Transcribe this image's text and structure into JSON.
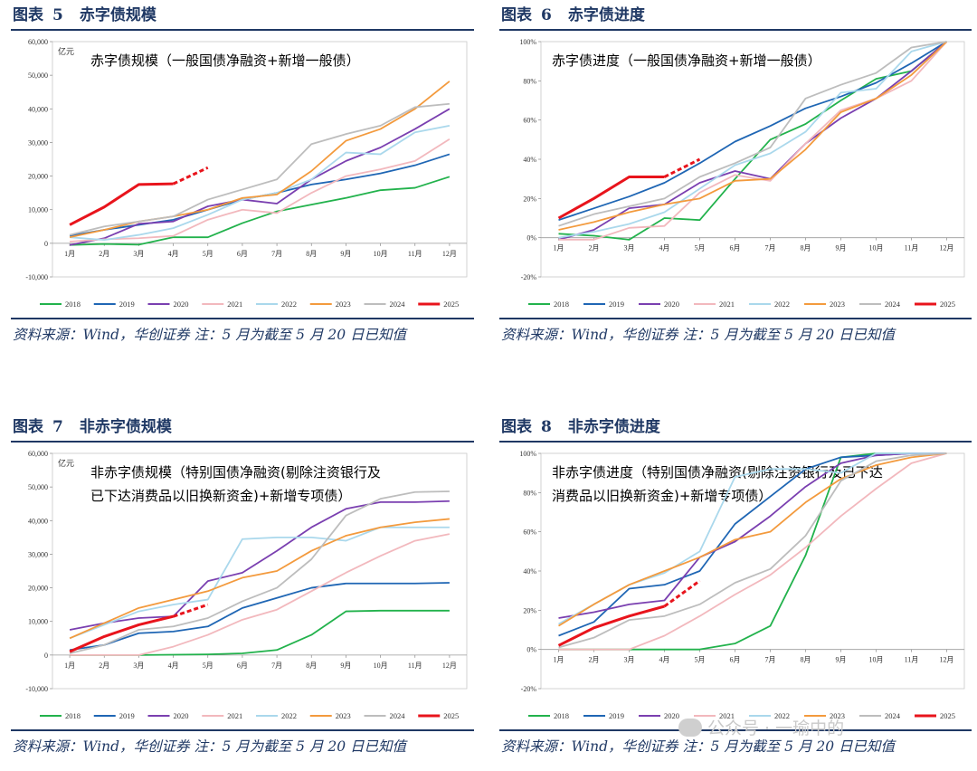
{
  "figures": [
    {
      "id": "p5",
      "label": "图表",
      "number": "5",
      "title": "赤字债规模",
      "source": "资料来源：Wind，华创证券  注：5 月为截至 5 月 20 日已知值"
    },
    {
      "id": "p6",
      "label": "图表",
      "number": "6",
      "title": "赤字债进度",
      "source": "资料来源：Wind，华创证券  注：5 月为截至 5 月 20 日已知值"
    },
    {
      "id": "p7",
      "label": "图表",
      "number": "7",
      "title": "非赤字债规模",
      "source": "资料来源：Wind，华创证券 注：5 月为截至 5 月 20 日已知值"
    },
    {
      "id": "p8",
      "label": "图表",
      "number": "8",
      "title": "非赤字债进度",
      "source": "资料来源：Wind，华创证券 注：5 月为截至 5 月 20 日已知值"
    }
  ],
  "watermark": "公众号 · 一瑜中的",
  "colors": {
    "2018": "#22b24c",
    "2019": "#1f66b4",
    "2020": "#7a3fb0",
    "2021": "#f2b8bd",
    "2022": "#aad8ec",
    "2023": "#f39a3d",
    "2024": "#bdbdbd",
    "2025": "#e8141c",
    "navy": "#1f3864"
  },
  "chart_data": [
    {
      "type": "line",
      "panel": "p5",
      "title": "赤字债规模（一般国债净融资+新增一般债）",
      "ylabel": "亿元",
      "ylim": [
        -10000,
        60000
      ],
      "yticks": [
        "-10,000",
        "0",
        "10,000",
        "20,000",
        "30,000",
        "40,000",
        "50,000",
        "60,000"
      ],
      "categories": [
        "1月",
        "2月",
        "3月",
        "4月",
        "5月",
        "6月",
        "7月",
        "8月",
        "9月",
        "10月",
        "11月",
        "12月"
      ],
      "series": [
        {
          "name": "2018",
          "values": [
            -500,
            -200,
            -400,
            1800,
            1800,
            6000,
            9500,
            11500,
            13500,
            15800,
            16500,
            19800
          ]
        },
        {
          "name": "2019",
          "values": [
            2200,
            4000,
            5500,
            7000,
            10000,
            13000,
            15000,
            17500,
            19000,
            20800,
            23200,
            26500
          ]
        },
        {
          "name": "2020",
          "values": [
            -500,
            1500,
            5800,
            6500,
            11000,
            13000,
            11800,
            19000,
            24500,
            28500,
            34000,
            40000
          ]
        },
        {
          "name": "2021",
          "values": [
            500,
            1200,
            1500,
            2200,
            7000,
            10000,
            9000,
            15000,
            20000,
            22000,
            24500,
            31000
          ]
        },
        {
          "name": "2022",
          "values": [
            1800,
            1000,
            2500,
            4500,
            8500,
            13000,
            15000,
            19000,
            27000,
            26500,
            33000,
            35000
          ]
        },
        {
          "name": "2023",
          "values": [
            1800,
            4000,
            6500,
            8000,
            10000,
            13500,
            14500,
            21500,
            30500,
            34000,
            40000,
            48200
          ]
        },
        {
          "name": "2024",
          "values": [
            2500,
            5000,
            6500,
            8000,
            13000,
            16000,
            19000,
            29500,
            32500,
            35000,
            40500,
            41500
          ]
        },
        {
          "name": "2025",
          "values": [
            5500,
            10800,
            17500,
            17700,
            null,
            null,
            null,
            null,
            null,
            null,
            null,
            null
          ],
          "dashed_to": {
            "index": 4,
            "value": 22500
          }
        }
      ]
    },
    {
      "type": "line",
      "panel": "p6",
      "title": "赤字债进度（一般国债净融资+新增一般债）",
      "ylabel": "",
      "ylim": [
        -20,
        100
      ],
      "yticks": [
        "-20%",
        "0%",
        "20%",
        "40%",
        "60%",
        "80%",
        "100%"
      ],
      "categories": [
        "1月",
        "2月",
        "3月",
        "4月",
        "5月",
        "6月",
        "7月",
        "8月",
        "9月",
        "10月",
        "11月",
        "12月"
      ],
      "series": [
        {
          "name": "2018",
          "values": [
            2,
            1,
            -1,
            10,
            9,
            30,
            50,
            58,
            70,
            81,
            85,
            100
          ]
        },
        {
          "name": "2019",
          "values": [
            9,
            15,
            21,
            28,
            38,
            49,
            57,
            66,
            72,
            79,
            89,
            100
          ]
        },
        {
          "name": "2020",
          "values": [
            -1,
            4,
            15,
            17,
            28,
            34,
            30,
            48,
            61,
            71,
            85,
            100
          ]
        },
        {
          "name": "2021",
          "values": [
            -1,
            -1,
            5,
            6,
            23,
            32,
            29,
            48,
            65,
            71,
            80,
            100
          ]
        },
        {
          "name": "2022",
          "values": [
            0,
            3,
            7,
            13,
            25,
            37,
            43,
            54,
            74,
            76,
            95,
            100
          ]
        },
        {
          "name": "2023",
          "values": [
            4,
            8,
            13,
            17,
            20,
            29,
            30,
            45,
            64,
            71,
            83,
            100
          ]
        },
        {
          "name": "2024",
          "values": [
            6,
            12,
            16,
            20,
            31,
            38,
            46,
            71,
            78,
            84,
            97,
            100
          ]
        },
        {
          "name": "2025",
          "values": [
            10,
            20,
            31,
            31,
            null,
            null,
            null,
            null,
            null,
            null,
            null,
            null
          ],
          "dashed_to": {
            "index": 4,
            "value": 40
          }
        }
      ]
    },
    {
      "type": "line",
      "panel": "p7",
      "title": "非赤字债规模（特别国债净融资(剔除注资银行及已下达消费品以旧换新资金)+新增专项债）",
      "title_lines": [
        "非赤字债规模（特别国债净融资(剔除注资银行及",
        "已下达消费品以旧换新资金)+新增专项债）"
      ],
      "ylabel": "亿元",
      "ylim": [
        -10000,
        60000
      ],
      "yticks": [
        "-10,000",
        "0",
        "10,000",
        "20,000",
        "30,000",
        "40,000",
        "50,000",
        "60,000"
      ],
      "categories": [
        "1月",
        "2月",
        "3月",
        "4月",
        "5月",
        "6月",
        "7月",
        "8月",
        "9月",
        "10月",
        "11月",
        "12月"
      ],
      "series": [
        {
          "name": "2018",
          "values": [
            0,
            0,
            0,
            100,
            200,
            500,
            1500,
            6000,
            13000,
            13200,
            13200,
            13200
          ]
        },
        {
          "name": "2019",
          "values": [
            1500,
            3000,
            6500,
            7000,
            8500,
            14000,
            17000,
            20000,
            21300,
            21300,
            21300,
            21500
          ]
        },
        {
          "name": "2020",
          "values": [
            7500,
            9500,
            11000,
            11500,
            22000,
            24500,
            31000,
            38000,
            43500,
            45500,
            45500,
            45800
          ]
        },
        {
          "name": "2021",
          "values": [
            0,
            0,
            0,
            2500,
            6000,
            10500,
            13500,
            19000,
            24500,
            29500,
            34000,
            36000
          ]
        },
        {
          "name": "2022",
          "values": [
            5000,
            9000,
            13000,
            15000,
            16500,
            34500,
            35000,
            35000,
            34000,
            38000,
            38000,
            38000
          ]
        },
        {
          "name": "2023",
          "values": [
            5000,
            9500,
            14000,
            16500,
            19000,
            23000,
            25000,
            31000,
            35500,
            38000,
            39500,
            40500
          ]
        },
        {
          "name": "2024",
          "values": [
            500,
            3000,
            7500,
            8500,
            11000,
            16000,
            20000,
            28500,
            41500,
            46500,
            48500,
            48700
          ]
        },
        {
          "name": "2025",
          "values": [
            1000,
            5500,
            9000,
            11500,
            null,
            null,
            null,
            null,
            null,
            null,
            null,
            null
          ],
          "dashed_to": {
            "index": 4,
            "value": 15000
          }
        }
      ]
    },
    {
      "type": "line",
      "panel": "p8",
      "title": "非赤字债进度（特别国债净融资(剔除注资银行及已下达消费品以旧换新资金)+新增专项债）",
      "title_lines": [
        "非赤字债进度（特别国债净融资(剔除注资银行及已下达",
        "消费品以旧换新资金)+新增专项债）"
      ],
      "ylabel": "",
      "ylim": [
        -20,
        100
      ],
      "yticks": [
        "-20%",
        "0%",
        "20%",
        "40%",
        "60%",
        "80%",
        "100%"
      ],
      "categories": [
        "1月",
        "2月",
        "3月",
        "4月",
        "5月",
        "6月",
        "7月",
        "8月",
        "9月",
        "10月",
        "11月",
        "12月"
      ],
      "series": [
        {
          "name": "2018",
          "values": [
            0,
            0,
            0,
            0,
            0,
            3,
            12,
            48,
            98,
            100,
            100,
            100
          ]
        },
        {
          "name": "2019",
          "values": [
            7,
            14,
            31,
            33,
            40,
            64,
            78,
            92,
            98,
            99,
            100,
            100
          ]
        },
        {
          "name": "2020",
          "values": [
            16,
            19,
            23,
            25,
            47,
            55,
            68,
            83,
            95,
            99,
            100,
            100
          ]
        },
        {
          "name": "2021",
          "values": [
            0,
            0,
            0,
            7,
            17,
            28,
            38,
            52,
            68,
            82,
            95,
            100
          ]
        },
        {
          "name": "2022",
          "values": [
            13,
            23,
            33,
            39,
            50,
            88,
            92,
            92,
            90,
            100,
            100,
            100
          ]
        },
        {
          "name": "2023",
          "values": [
            12,
            23,
            33,
            40,
            47,
            56,
            60,
            75,
            87,
            94,
            98,
            100
          ]
        },
        {
          "name": "2024",
          "values": [
            1,
            6,
            15,
            17,
            23,
            34,
            41,
            58,
            86,
            96,
            99,
            100
          ]
        },
        {
          "name": "2025",
          "values": [
            2,
            11,
            17,
            22,
            null,
            null,
            null,
            null,
            null,
            null,
            null,
            null
          ],
          "dashed_to": {
            "index": 4,
            "value": 35
          }
        }
      ]
    }
  ]
}
